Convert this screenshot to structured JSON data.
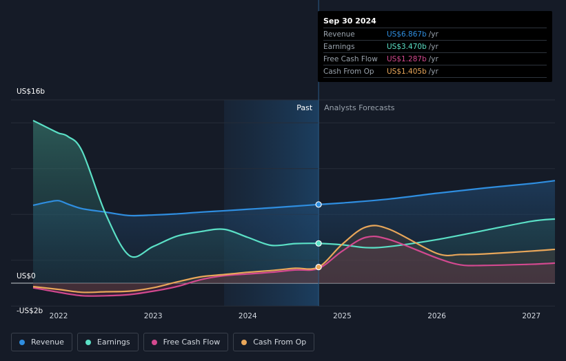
{
  "chart_data": {
    "type": "line",
    "title": "",
    "xlabel": "",
    "ylabel": "",
    "ylim": [
      -2,
      16
    ],
    "xlim": [
      2021.73,
      2027.25
    ],
    "y_tick_labels": [
      {
        "value": 16,
        "label": "US$16b"
      },
      {
        "value": 0,
        "label": "US$0"
      },
      {
        "value": -2,
        "label": "-US$2b"
      }
    ],
    "x_ticks": [
      {
        "value": 2022,
        "label": "2022"
      },
      {
        "value": 2023,
        "label": "2023"
      },
      {
        "value": 2024,
        "label": "2024"
      },
      {
        "value": 2025,
        "label": "2025"
      },
      {
        "value": 2026,
        "label": "2026"
      },
      {
        "value": 2027,
        "label": "2027"
      }
    ],
    "past_label": "Past",
    "forecast_label": "Analysts Forecasts",
    "divider_x": 2024.75,
    "shade_start_x": 2023.75,
    "series": [
      {
        "name": "Revenue",
        "color": "#2f8ee0",
        "x": [
          2021.73,
          2021.9,
          2022.0,
          2022.1,
          2022.25,
          2022.5,
          2022.75,
          2023.0,
          2023.25,
          2023.5,
          2023.75,
          2024.0,
          2024.25,
          2024.5,
          2024.75,
          2025.0,
          2025.5,
          2026.0,
          2026.5,
          2027.0,
          2027.25
        ],
        "values": [
          6.8,
          7.1,
          7.2,
          6.9,
          6.5,
          6.2,
          5.9,
          5.95,
          6.05,
          6.2,
          6.32,
          6.45,
          6.58,
          6.72,
          6.867,
          7.0,
          7.35,
          7.85,
          8.3,
          8.7,
          8.95
        ]
      },
      {
        "name": "Earnings",
        "color": "#5be0c6",
        "x": [
          2021.73,
          2021.9,
          2022.0,
          2022.1,
          2022.25,
          2022.5,
          2022.75,
          2023.0,
          2023.25,
          2023.5,
          2023.75,
          2024.0,
          2024.25,
          2024.5,
          2024.75,
          2025.0,
          2025.25,
          2025.5,
          2026.0,
          2026.5,
          2027.0,
          2027.25
        ],
        "values": [
          14.2,
          13.5,
          13.1,
          12.8,
          11.5,
          6.0,
          2.4,
          3.2,
          4.1,
          4.5,
          4.7,
          4.0,
          3.3,
          3.45,
          3.47,
          3.35,
          3.1,
          3.2,
          3.8,
          4.6,
          5.4,
          5.6
        ]
      },
      {
        "name": "Free Cash Flow",
        "color": "#d3498f",
        "x": [
          2021.73,
          2022.0,
          2022.25,
          2022.5,
          2022.75,
          2023.0,
          2023.25,
          2023.5,
          2023.75,
          2024.0,
          2024.25,
          2024.5,
          2024.75,
          2025.0,
          2025.25,
          2025.5,
          2026.0,
          2026.25,
          2026.5,
          2027.0,
          2027.25
        ],
        "values": [
          -0.4,
          -0.8,
          -1.1,
          -1.1,
          -1.0,
          -0.7,
          -0.3,
          0.3,
          0.65,
          0.8,
          0.95,
          1.15,
          1.287,
          2.8,
          4.0,
          3.8,
          2.2,
          1.6,
          1.55,
          1.65,
          1.75
        ]
      },
      {
        "name": "Cash From Op",
        "color": "#e9a75a",
        "x": [
          2021.73,
          2022.0,
          2022.25,
          2022.5,
          2022.75,
          2023.0,
          2023.25,
          2023.5,
          2023.75,
          2024.0,
          2024.25,
          2024.5,
          2024.75,
          2025.0,
          2025.25,
          2025.5,
          2026.0,
          2026.25,
          2026.5,
          2027.0,
          2027.25
        ],
        "values": [
          -0.3,
          -0.55,
          -0.8,
          -0.75,
          -0.7,
          -0.4,
          0.1,
          0.55,
          0.75,
          0.95,
          1.1,
          1.3,
          1.405,
          3.4,
          4.9,
          4.7,
          2.6,
          2.5,
          2.55,
          2.8,
          2.95
        ]
      }
    ]
  },
  "tooltip": {
    "date": "Sep 30 2024",
    "unit": "/yr",
    "rows": [
      {
        "label": "Revenue",
        "value": "US$6.867b",
        "color": "#2f8ee0"
      },
      {
        "label": "Earnings",
        "value": "US$3.470b",
        "color": "#5be0c6"
      },
      {
        "label": "Free Cash Flow",
        "value": "US$1.287b",
        "color": "#d3498f"
      },
      {
        "label": "Cash From Op",
        "value": "US$1.405b",
        "color": "#e9a75a"
      }
    ]
  },
  "legend": [
    {
      "label": "Revenue",
      "color": "#2f8ee0"
    },
    {
      "label": "Earnings",
      "color": "#5be0c6"
    },
    {
      "label": "Free Cash Flow",
      "color": "#d3498f"
    },
    {
      "label": "Cash From Op",
      "color": "#e9a75a"
    }
  ]
}
